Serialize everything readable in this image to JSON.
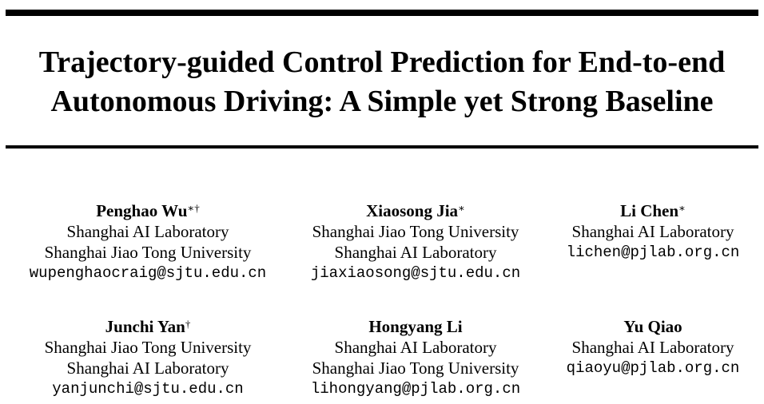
{
  "title": {
    "line1": "Trajectory-guided Control Prediction for End-to-end",
    "line2": "Autonomous Driving: A Simple yet Strong Baseline"
  },
  "authors": [
    {
      "name": "Penghao Wu",
      "marks": "∗†",
      "affiliations": [
        "Shanghai AI Laboratory",
        "Shanghai Jiao Tong University"
      ],
      "email": "wupenghaocraig@sjtu.edu.cn"
    },
    {
      "name": "Xiaosong Jia",
      "marks": "∗",
      "affiliations": [
        "Shanghai Jiao Tong University",
        "Shanghai AI Laboratory"
      ],
      "email": "jiaxiaosong@sjtu.edu.cn"
    },
    {
      "name": "Li Chen",
      "marks": "∗",
      "affiliations": [
        "Shanghai AI Laboratory"
      ],
      "email": "lichen@pjlab.org.cn"
    },
    {
      "name": "Junchi Yan",
      "marks": "†",
      "affiliations": [
        "Shanghai Jiao Tong University",
        "Shanghai AI Laboratory"
      ],
      "email": "yanjunchi@sjtu.edu.cn"
    },
    {
      "name": "Hongyang Li",
      "marks": "",
      "affiliations": [
        "Shanghai AI Laboratory",
        "Shanghai Jiao Tong University"
      ],
      "email": "lihongyang@pjlab.org.cn"
    },
    {
      "name": "Yu Qiao",
      "marks": "",
      "affiliations": [
        "Shanghai AI Laboratory"
      ],
      "email": "qiaoyu@pjlab.org.cn"
    }
  ]
}
